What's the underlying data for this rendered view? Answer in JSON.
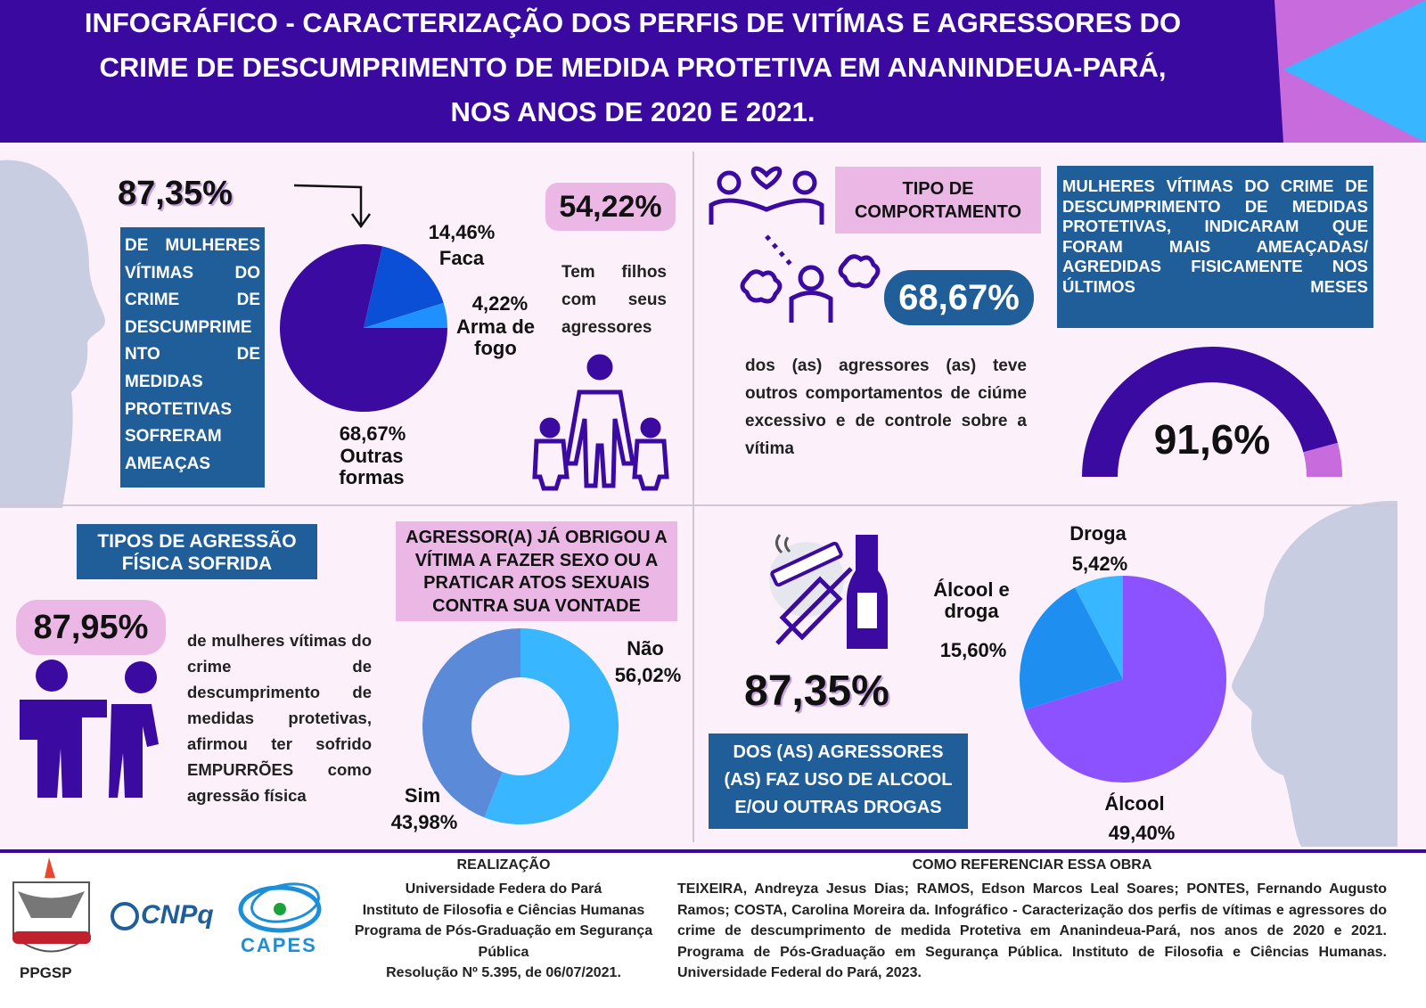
{
  "header": {
    "title_lines": [
      "INFOGRÁFICO - CARACTERIZAÇÃO DOS PERFIS DE VITÍMAS E AGRESSORES DO",
      "CRIME DE DESCUMPRIMENTO DE MEDIDA PROTETIVA EM ANANINDEUA-PARÁ,",
      "NOS ANOS DE 2020 E 2021."
    ]
  },
  "threats": {
    "headline": "87,35%",
    "text": "DE MULHERES VÍTIMAS DO CRIME DE DESCUMPRIMENTO DE MEDIDAS PROTETIVAS SOFRERAM AMEAÇAS",
    "pie": {
      "type": "pie",
      "categories": [
        "Outras formas",
        "Faca",
        "Arma de fogo"
      ],
      "values": [
        68.67,
        14.46,
        4.22
      ],
      "value_labels": [
        "68,67%",
        "14,46%",
        "4,22%"
      ],
      "colors": [
        "#3b0aa0",
        "#0a4fd6",
        "#1e90ff"
      ]
    }
  },
  "children": {
    "headline": "54,22%",
    "text": "Tem filhos com seus agressores"
  },
  "behavior": {
    "label": "TIPO DE COMPORTAMENTO",
    "headline": "68,67%",
    "text": "dos (as) agressores (as) teve outros comportamentos de ciúme excessivo e de controle sobre a vítima"
  },
  "recent": {
    "text": "MULHERES VÍTIMAS DO CRIME DE DESCUMPRIMENTO DE MEDIDAS PROTETIVAS, INDICARAM QUE FORAM MAIS AMEAÇADAS/ AGREDIDAS FISICAMENTE NOS ÚLTIMOS MESES",
    "gauge": {
      "type": "gauge",
      "value": 91.6,
      "value_label": "91,6%",
      "ylim": [
        0,
        100
      ],
      "colors": [
        "#3b0aa0",
        "#c86bdc"
      ]
    }
  },
  "aggression": {
    "label": "TIPOS DE AGRESSÃO FÍSICA SOFRIDA",
    "headline": "87,95%",
    "text": "de mulheres vítimas do crime de descumprimento de medidas protetivas, afirmou ter sofrido EMPURRÕES como agressão física"
  },
  "sexual": {
    "label": "AGRESSOR(A) JÁ OBRIGOU A VÍTIMA A FAZER SEXO OU A PRATICAR ATOS SEXUAIS CONTRA SUA VONTADE",
    "donut": {
      "type": "donut",
      "categories": [
        "Não",
        "Sim"
      ],
      "values": [
        56.02,
        43.98
      ],
      "value_labels": [
        "56,02%",
        "43,98%"
      ],
      "colors": [
        "#38b6ff",
        "#5b8bd8"
      ]
    }
  },
  "substances": {
    "headline": "87,35%",
    "text": "DOS (AS) AGRESSORES (AS) FAZ USO DE ALCOOL E/OU OUTRAS DROGAS",
    "pie": {
      "type": "pie",
      "categories": [
        "Álcool",
        "Álcool e droga",
        "Droga"
      ],
      "values": [
        49.4,
        15.6,
        5.42
      ],
      "value_labels": [
        "49,40%",
        "15,60%",
        "5,42%"
      ],
      "colors": [
        "#8c52ff",
        "#1e8ff0",
        "#38b6ff"
      ]
    }
  },
  "footer": {
    "logos": [
      "PPGSP",
      "CNPq",
      "CAPES"
    ],
    "realization": {
      "title": "REALIZAÇÃO",
      "lines": [
        "Universidade Federa do Pará",
        "Instituto de Filosofia e Ciências Humanas",
        "Programa de Pós-Graduação em Segurança Pública",
        "Resolução Nº 5.395, de 06/07/2021."
      ]
    },
    "reference": {
      "title": "COMO REFERENCIAR ESSA OBRA",
      "text": "TEIXEIRA, Andreyza Jesus Dias; RAMOS, Edson Marcos Leal Soares; PONTES, Fernando Augusto Ramos; COSTA, Carolina Moreira da. Infográfico - Caracterização dos perfis de vítimas e agressores do crime de descumprimento de medida Protetiva em Ananindeua-Pará, nos anos de 2020 e 2021. Programa de Pós-Graduação em Segurança Pública. Instituto de Filosofia e Ciências Humanas. Universidade Federal do Pará, 2023."
    }
  }
}
